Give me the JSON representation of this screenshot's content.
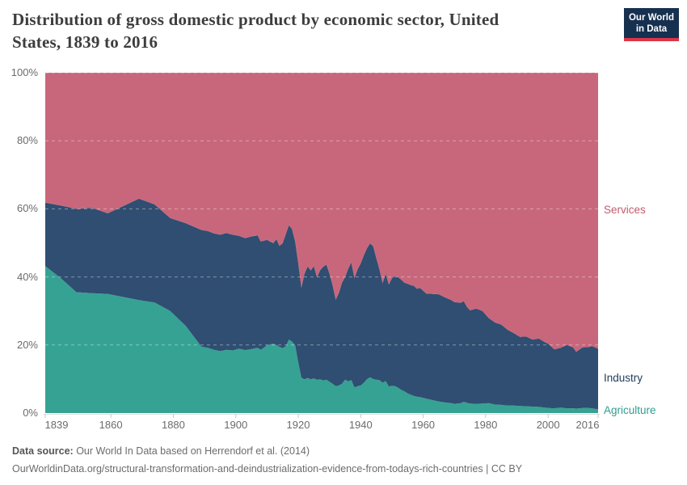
{
  "header": {
    "title": "Distribution of gross domestic product by economic sector, United States, 1839 to 2016",
    "title_line1": "Distribution of gross domestic product by economic sector, United",
    "title_line2": "States, 1839 to 2016",
    "logo_line1": "Our World",
    "logo_line2": "in Data",
    "logo_bg": "#16304f",
    "logo_stripe": "#dc3648"
  },
  "footer": {
    "source_label": "Data source:",
    "source_text": " Our World In Data based on Herrendorf et al. (2014)",
    "url_line": "OurWorldinData.org/structural-transformation-and-deindustrialization-evidence-from-todays-rich-countries | CC BY"
  },
  "colors": {
    "grid": "rgba(255,255,255,0.4)",
    "axis_line": "#dcdcdc",
    "tick_mark": "#c8c8c8",
    "tick_text": "#6b6b6b",
    "title_text": "#3d3d3d"
  },
  "chart_data": {
    "type": "area",
    "stacked": true,
    "unit": "%",
    "title": "Distribution of gross domestic product by economic sector, United States, 1839 to 2016",
    "xlabel": "",
    "ylabel": "",
    "xlim": [
      1839,
      2016
    ],
    "ylim": [
      0,
      100
    ],
    "grid": true,
    "legend_position": "right",
    "x_ticks": [
      1839,
      1860,
      1880,
      1900,
      1920,
      1940,
      1960,
      1980,
      2000,
      2016
    ],
    "x_tick_labels": [
      "1839",
      "1860",
      "1880",
      "1900",
      "1920",
      "1940",
      "1960",
      "1980",
      "2000",
      "2016"
    ],
    "y_ticks": [
      0,
      20,
      40,
      60,
      80,
      100
    ],
    "y_tick_labels": [
      "0%",
      "20%",
      "40%",
      "60%",
      "80%",
      "100%"
    ],
    "x": [
      1839,
      1844,
      1849,
      1854,
      1859,
      1869,
      1874,
      1879,
      1884,
      1889,
      1891,
      1893,
      1895,
      1897,
      1899,
      1901,
      1903,
      1905,
      1907,
      1908,
      1910,
      1912,
      1913,
      1914,
      1915,
      1916,
      1917,
      1918,
      1919,
      1920,
      1921,
      1922,
      1923,
      1924,
      1925,
      1926,
      1927,
      1928,
      1929,
      1930,
      1931,
      1932,
      1933,
      1934,
      1935,
      1936,
      1937,
      1938,
      1939,
      1940,
      1941,
      1942,
      1943,
      1944,
      1945,
      1946,
      1947,
      1948,
      1949,
      1950,
      1951,
      1952,
      1953,
      1954,
      1955,
      1956,
      1957,
      1958,
      1959,
      1961,
      1963,
      1965,
      1967,
      1969,
      1970,
      1972,
      1973,
      1974,
      1975,
      1977,
      1979,
      1981,
      1983,
      1985,
      1987,
      1989,
      1991,
      1993,
      1995,
      1997,
      1999,
      2000,
      2002,
      2004,
      2006,
      2008,
      2009,
      2011,
      2013,
      2014,
      2016
    ],
    "series": [
      {
        "name": "Agriculture",
        "color": "#36a294",
        "label_color": "#2f9e8e",
        "values": [
          43.2,
          39.6,
          35.5,
          35.2,
          35.0,
          33.2,
          32.5,
          30.0,
          25.6,
          19.5,
          19.2,
          18.6,
          18.2,
          18.6,
          18.4,
          18.9,
          18.5,
          18.8,
          19.2,
          18.6,
          19.9,
          20.4,
          20.0,
          19.4,
          19.1,
          19.6,
          21.6,
          21.0,
          19.9,
          14.9,
          10.4,
          9.9,
          10.3,
          9.9,
          10.2,
          9.8,
          9.9,
          9.6,
          9.8,
          9.2,
          8.6,
          7.9,
          8.1,
          8.6,
          9.8,
          9.3,
          9.7,
          7.5,
          7.9,
          8.1,
          8.9,
          9.9,
          10.5,
          10.0,
          9.8,
          9.7,
          8.9,
          9.4,
          7.8,
          8.0,
          7.9,
          7.4,
          6.8,
          6.4,
          5.8,
          5.4,
          5.0,
          4.8,
          4.7,
          4.2,
          3.8,
          3.4,
          3.1,
          2.9,
          2.7,
          2.9,
          3.3,
          3.0,
          2.8,
          2.7,
          2.8,
          2.9,
          2.5,
          2.4,
          2.2,
          2.2,
          2.1,
          2.0,
          1.9,
          1.8,
          1.6,
          1.5,
          1.4,
          1.6,
          1.4,
          1.4,
          1.3,
          1.5,
          1.5,
          1.4,
          1.1
        ]
      },
      {
        "name": "Industry",
        "color": "#2f4e71",
        "label_color": "#1e3a5c",
        "values": [
          18.6,
          21.4,
          24.5,
          25.1,
          23.7,
          29.8,
          28.8,
          27.3,
          30.2,
          34.3,
          34.3,
          34.2,
          34.2,
          34.3,
          34.0,
          33.2,
          32.9,
          33.1,
          33.0,
          31.8,
          31.0,
          29.5,
          31.1,
          29.7,
          30.8,
          33.0,
          33.6,
          33.1,
          30.5,
          29.2,
          26.5,
          31.0,
          32.8,
          32.0,
          33.0,
          30.1,
          32.1,
          33.4,
          33.8,
          31.8,
          29.0,
          25.4,
          27.2,
          29.7,
          30.2,
          33.1,
          34.6,
          32.1,
          34.3,
          35.9,
          37.5,
          38.5,
          39.4,
          39.0,
          35.7,
          32.5,
          29.3,
          31.5,
          30.0,
          31.6,
          32.4,
          32.5,
          32.4,
          31.9,
          32.2,
          32.2,
          32.4,
          31.7,
          32.1,
          30.9,
          31.2,
          31.5,
          30.9,
          30.3,
          29.9,
          29.5,
          29.6,
          28.2,
          27.4,
          28.0,
          27.2,
          25.0,
          24.1,
          23.6,
          22.3,
          21.3,
          20.3,
          20.5,
          19.7,
          20.1,
          19.2,
          18.9,
          17.3,
          17.6,
          18.6,
          17.9,
          16.7,
          17.8,
          17.9,
          18.3,
          17.8
        ]
      },
      {
        "name": "Services",
        "color": "#c8677b",
        "label_color": "#c25b6e",
        "values": [
          38.2,
          39.0,
          40.0,
          39.7,
          41.3,
          37.0,
          38.7,
          42.7,
          44.2,
          46.2,
          46.5,
          47.2,
          47.6,
          47.1,
          47.6,
          47.9,
          48.6,
          48.1,
          47.8,
          49.6,
          49.1,
          50.1,
          48.9,
          50.9,
          50.1,
          47.4,
          44.8,
          45.9,
          49.6,
          55.9,
          63.1,
          59.1,
          56.9,
          58.1,
          56.8,
          60.1,
          58.0,
          57.0,
          56.4,
          59.0,
          62.4,
          66.7,
          64.7,
          61.7,
          60.0,
          57.6,
          55.7,
          60.4,
          57.8,
          56.0,
          53.6,
          51.6,
          50.1,
          51.0,
          54.5,
          57.8,
          61.8,
          59.1,
          62.2,
          60.4,
          59.7,
          60.1,
          60.8,
          61.7,
          62.0,
          62.4,
          62.6,
          63.5,
          63.2,
          64.9,
          65.0,
          65.1,
          66.0,
          66.8,
          67.4,
          67.6,
          67.1,
          68.8,
          69.8,
          69.3,
          70.0,
          72.1,
          73.4,
          74.0,
          75.5,
          76.5,
          77.6,
          77.5,
          78.4,
          78.1,
          79.2,
          79.6,
          81.3,
          80.8,
          80.0,
          80.7,
          82.0,
          80.7,
          80.6,
          80.3,
          81.1
        ]
      }
    ]
  }
}
